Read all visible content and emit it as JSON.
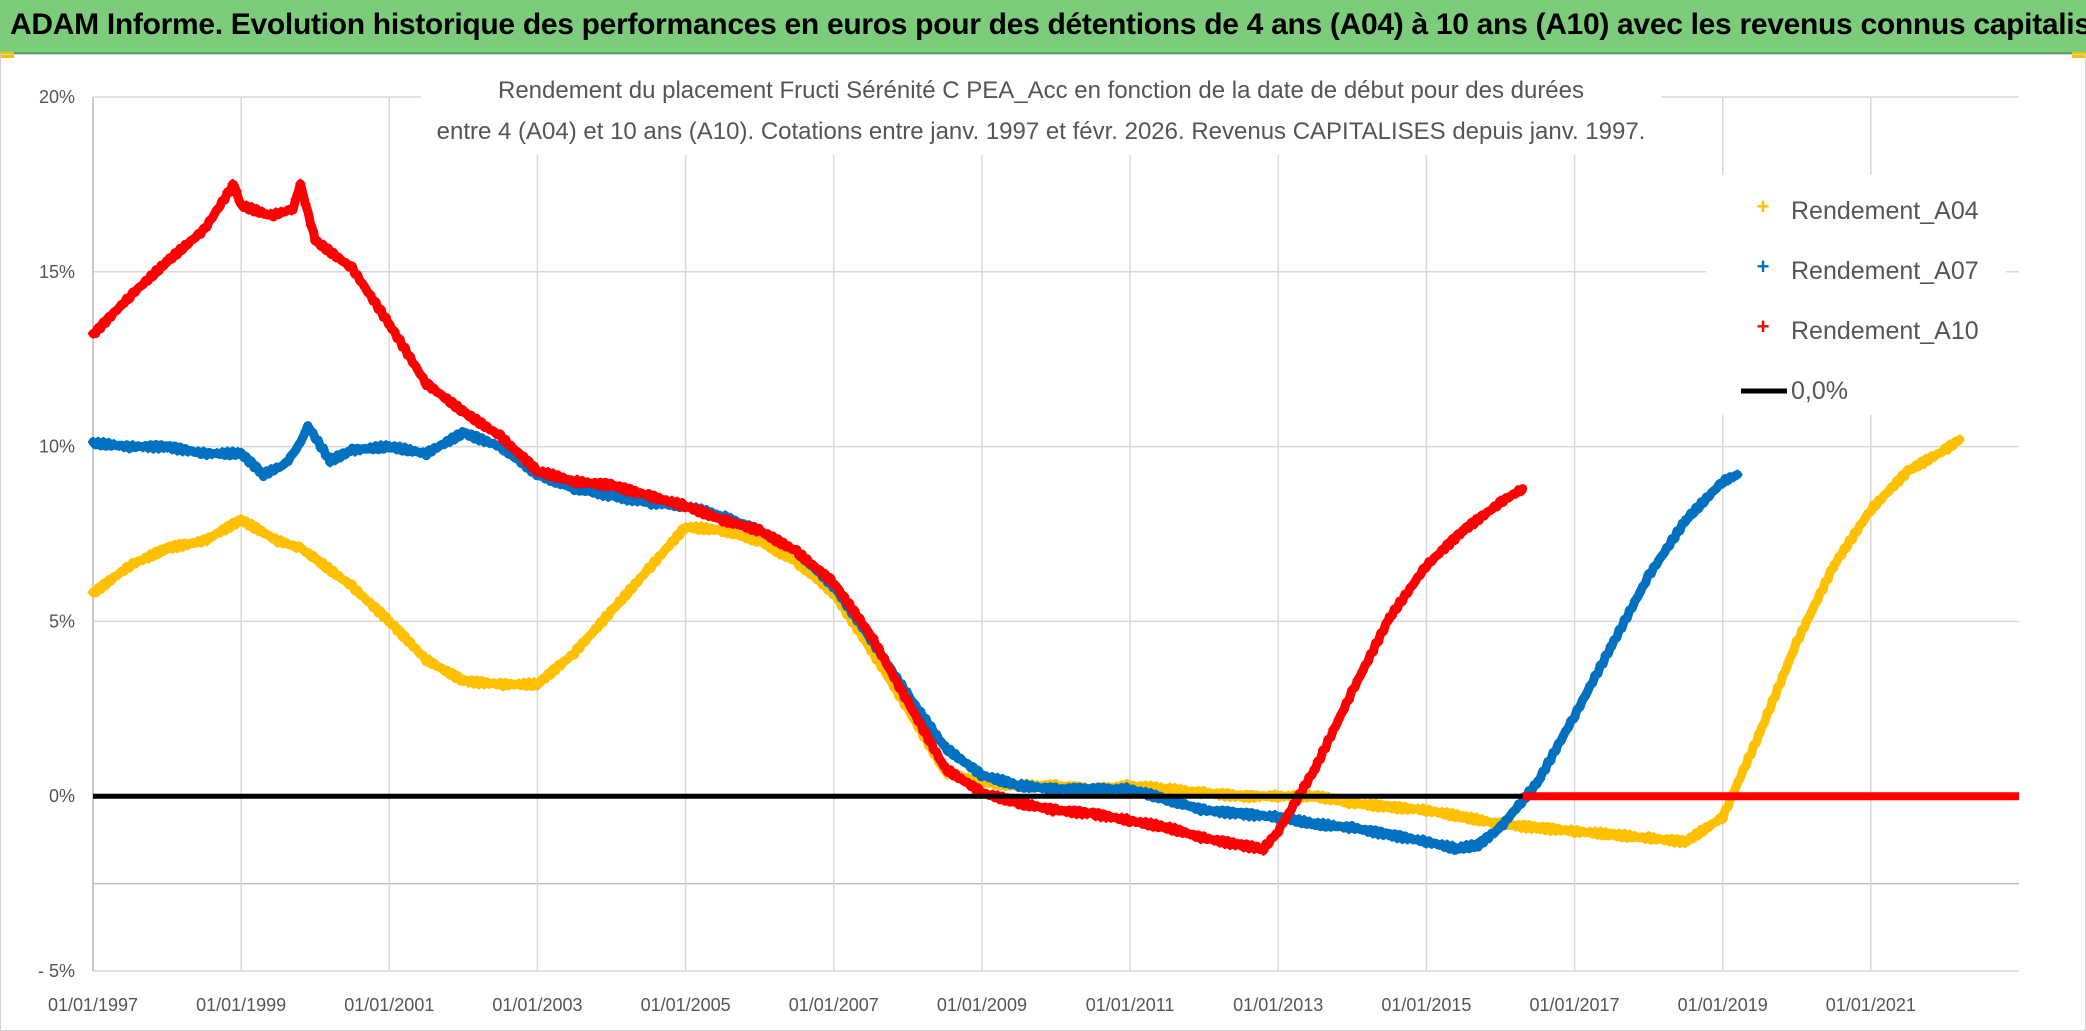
{
  "banner": {
    "title": "ADAM Informe. Evolution historique des performances en euros pour des détentions de 4 ans (A04) à 10 ans (A10) avec les revenus connus capitalisés"
  },
  "colors": {
    "banner_bg": "#7ccc7c",
    "A04": "#ffc000",
    "A07": "#0070c0",
    "A10": "#ff0000",
    "zero": "#000000",
    "grid": "#d9d9d9"
  },
  "chart_data": {
    "type": "scatter",
    "title_line1": "Rendement du placement Fructi Sérénité C PEA_Acc en fonction de la date de début pour des durées",
    "title_line2": "entre 4 (A04) et 10 ans (A10). Cotations entre janv. 1997 et févr. 2026. Revenus CAPITALISES depuis janv. 1997.",
    "xlabel": "",
    "ylabel": "",
    "xlim": [
      1997.0,
      2023.0
    ],
    "ylim": [
      -5,
      20
    ],
    "y_ticks": [
      -5,
      0,
      5,
      10,
      15,
      20
    ],
    "y_tick_labels": [
      "- 5%",
      "0%",
      "5%",
      "10%",
      "15%",
      "20%"
    ],
    "x_ticks": [
      1997,
      1999,
      2001,
      2003,
      2005,
      2007,
      2009,
      2011,
      2013,
      2015,
      2017,
      2019,
      2021
    ],
    "x_tick_labels": [
      "01/01/1997",
      "01/01/1999",
      "01/01/2001",
      "01/01/2003",
      "01/01/2005",
      "01/01/2007",
      "01/01/2009",
      "01/01/2011",
      "01/01/2013",
      "01/01/2015",
      "01/01/2017",
      "01/01/2019",
      "01/01/2021"
    ],
    "legend_position": "right",
    "series": [
      {
        "name": "Rendement_A04",
        "color": "#ffc000",
        "x": [
          1997.0,
          1997.5,
          1998.0,
          1998.5,
          1999.0,
          1999.5,
          1999.8,
          2000.0,
          2000.5,
          2001.0,
          2001.5,
          2002.0,
          2002.5,
          2003.0,
          2003.5,
          2004.0,
          2004.5,
          2005.0,
          2005.5,
          2006.0,
          2006.5,
          2007.0,
          2007.5,
          2008.0,
          2008.5,
          2009.0,
          2009.5,
          2010.0,
          2010.5,
          2011.0,
          2011.5,
          2012.0,
          2012.5,
          2013.0,
          2013.5,
          2014.0,
          2014.5,
          2015.0,
          2015.5,
          2016.0,
          2016.5,
          2017.0,
          2017.5,
          2018.0,
          2018.5,
          2019.0,
          2019.5,
          2020.0,
          2020.5,
          2021.0,
          2021.5,
          2022.0,
          2022.2
        ],
        "y": [
          5.8,
          6.6,
          7.1,
          7.3,
          7.9,
          7.3,
          7.1,
          6.8,
          6.0,
          5.0,
          3.9,
          3.3,
          3.2,
          3.2,
          4.1,
          5.3,
          6.5,
          7.7,
          7.6,
          7.3,
          6.7,
          5.8,
          4.2,
          2.5,
          0.7,
          0.4,
          0.3,
          0.3,
          0.2,
          0.3,
          0.2,
          0.1,
          0.0,
          0.0,
          0.0,
          -0.2,
          -0.3,
          -0.4,
          -0.6,
          -0.8,
          -0.9,
          -1.0,
          -1.1,
          -1.2,
          -1.3,
          -0.6,
          1.8,
          4.4,
          6.6,
          8.2,
          9.3,
          9.9,
          10.2
        ]
      },
      {
        "name": "Rendement_A07",
        "color": "#0070c0",
        "x": [
          1997.0,
          1997.5,
          1998.0,
          1998.5,
          1999.0,
          1999.3,
          1999.6,
          1999.8,
          1999.9,
          2000.2,
          2000.5,
          2001.0,
          2001.5,
          2002.0,
          2002.5,
          2003.0,
          2003.5,
          2004.0,
          2004.5,
          2005.0,
          2005.5,
          2006.0,
          2006.5,
          2007.0,
          2007.5,
          2008.0,
          2008.5,
          2009.0,
          2009.5,
          2010.0,
          2010.5,
          2011.0,
          2011.5,
          2012.0,
          2012.5,
          2013.0,
          2013.5,
          2014.0,
          2014.5,
          2015.0,
          2015.4,
          2015.7,
          2016.0,
          2016.5,
          2017.0,
          2017.5,
          2018.0,
          2018.5,
          2019.0,
          2019.2
        ],
        "y": [
          10.1,
          10.0,
          10.0,
          9.8,
          9.8,
          9.2,
          9.5,
          10.1,
          10.6,
          9.6,
          9.9,
          10.0,
          9.8,
          10.4,
          10.0,
          9.2,
          8.8,
          8.6,
          8.4,
          8.3,
          8.0,
          7.6,
          7.0,
          6.0,
          4.5,
          2.9,
          1.4,
          0.6,
          0.3,
          0.2,
          0.2,
          0.2,
          -0.1,
          -0.4,
          -0.5,
          -0.6,
          -0.8,
          -0.9,
          -1.1,
          -1.3,
          -1.5,
          -1.4,
          -0.9,
          0.4,
          2.3,
          4.3,
          6.3,
          7.9,
          9.0,
          9.2
        ]
      },
      {
        "name": "Rendement_A10",
        "color": "#ff0000",
        "x": [
          1997.0,
          1997.5,
          1998.0,
          1998.5,
          1998.9,
          1999.0,
          1999.4,
          1999.7,
          1999.8,
          2000.0,
          2000.5,
          2001.0,
          2001.5,
          2002.0,
          2002.5,
          2003.0,
          2003.5,
          2004.0,
          2004.5,
          2005.0,
          2005.5,
          2006.0,
          2006.5,
          2007.0,
          2007.5,
          2008.0,
          2008.5,
          2009.0,
          2009.5,
          2010.0,
          2010.5,
          2011.0,
          2011.5,
          2012.0,
          2012.5,
          2012.8,
          2013.0,
          2013.5,
          2014.0,
          2014.5,
          2015.0,
          2015.5,
          2016.0,
          2016.3
        ],
        "y": [
          13.2,
          14.3,
          15.3,
          16.2,
          17.5,
          16.9,
          16.6,
          16.8,
          17.5,
          15.9,
          15.1,
          13.5,
          11.8,
          11.0,
          10.3,
          9.3,
          9.0,
          8.9,
          8.6,
          8.3,
          7.9,
          7.6,
          7.0,
          6.1,
          4.6,
          2.7,
          0.8,
          0.1,
          -0.2,
          -0.4,
          -0.5,
          -0.7,
          -0.9,
          -1.2,
          -1.4,
          -1.5,
          -1.0,
          0.8,
          3.0,
          5.1,
          6.6,
          7.6,
          8.4,
          8.8
        ]
      },
      {
        "name": "0,0%",
        "color": "#000000",
        "type": "line",
        "x": [
          1997.0,
          2023.0
        ],
        "y": [
          0,
          0
        ]
      }
    ],
    "trailing_zero_segment": {
      "series": "Rendement_A10",
      "x_from": 2016.3,
      "x_to": 2023.0,
      "y": 0
    }
  }
}
